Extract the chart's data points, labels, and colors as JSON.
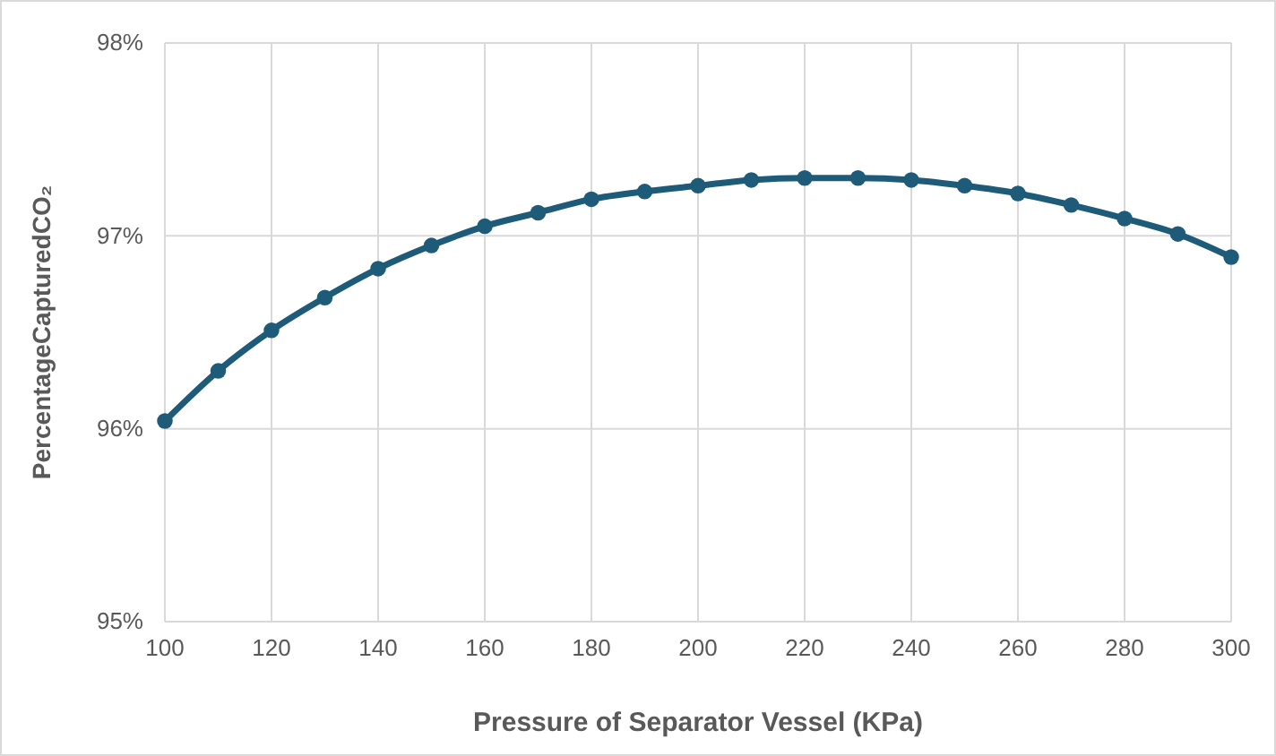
{
  "chart_data": {
    "type": "line",
    "xlabel": "Pressure of Separator Vessel (KPa)",
    "ylabel": "PercentageCapturedCO₂",
    "x": [
      100,
      110,
      120,
      130,
      140,
      150,
      160,
      170,
      180,
      190,
      200,
      210,
      220,
      230,
      240,
      250,
      260,
      270,
      280,
      290,
      300
    ],
    "series": [
      {
        "color": "#1d5b79",
        "values": [
          96.04,
          96.3,
          96.51,
          96.68,
          96.83,
          96.95,
          97.05,
          97.12,
          97.19,
          97.23,
          97.26,
          97.29,
          97.3,
          97.3,
          97.29,
          97.26,
          97.22,
          97.16,
          97.09,
          97.01,
          96.89
        ]
      }
    ],
    "xlim": [
      100,
      300
    ],
    "xticks": [
      100,
      120,
      140,
      160,
      180,
      200,
      220,
      240,
      260,
      280,
      300
    ],
    "ylim": [
      95,
      98
    ],
    "yticks": [
      {
        "value": 95,
        "label": "95%"
      },
      {
        "value": 96,
        "label": "96%"
      },
      {
        "value": 97,
        "label": "97%"
      },
      {
        "value": 98,
        "label": "98%"
      }
    ],
    "grid": true,
    "marker": "circle",
    "line_style": "solid"
  }
}
